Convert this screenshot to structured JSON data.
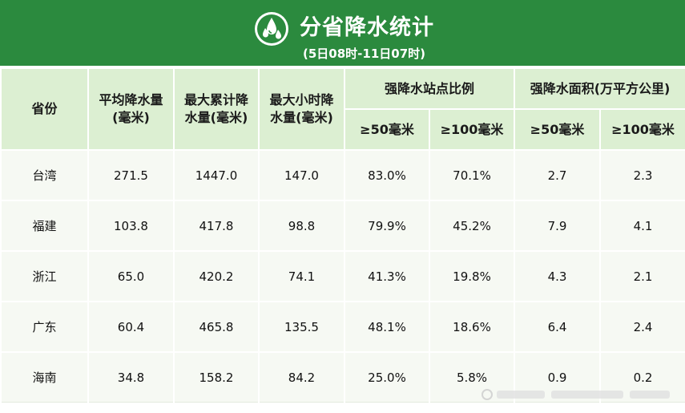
{
  "header": {
    "title": "分省降水统计",
    "subtitle": "(5日08时-11日07时)",
    "icon": "water-drops-icon",
    "colors": {
      "band": "#2b8a3e",
      "header_cells": "#dcefd2",
      "body_cells": "#f6f9f3"
    }
  },
  "table": {
    "col_province": "省份",
    "col_avg": "平均降水量(毫米)",
    "col_max_acc": "最大累计降水量(毫米)",
    "col_max_hour": "最大小时降水量(毫米)",
    "group_ratio": "强降水站点比例",
    "group_area": "强降水面积(万平方公里)",
    "sub_50": "≥50毫米",
    "sub_100": "≥100毫米",
    "rows": [
      {
        "province": "台湾",
        "avg": "271.5",
        "max_acc": "1447.0",
        "max_hour": "147.0",
        "ratio_50": "83.0%",
        "ratio_100": "70.1%",
        "area_50": "2.7",
        "area_100": "2.3"
      },
      {
        "province": "福建",
        "avg": "103.8",
        "max_acc": "417.8",
        "max_hour": "98.8",
        "ratio_50": "79.9%",
        "ratio_100": "45.2%",
        "area_50": "7.9",
        "area_100": "4.1"
      },
      {
        "province": "浙江",
        "avg": "65.0",
        "max_acc": "420.2",
        "max_hour": "74.1",
        "ratio_50": "41.3%",
        "ratio_100": "19.8%",
        "area_50": "4.3",
        "area_100": "2.1"
      },
      {
        "province": "广东",
        "avg": "60.4",
        "max_acc": "465.8",
        "max_hour": "135.5",
        "ratio_50": "48.1%",
        "ratio_100": "18.6%",
        "area_50": "6.4",
        "area_100": "2.4"
      },
      {
        "province": "海南",
        "avg": "34.8",
        "max_acc": "158.2",
        "max_hour": "84.2",
        "ratio_50": "25.0%",
        "ratio_100": "5.8%",
        "area_50": "0.9",
        "area_100": "0.2"
      }
    ]
  }
}
